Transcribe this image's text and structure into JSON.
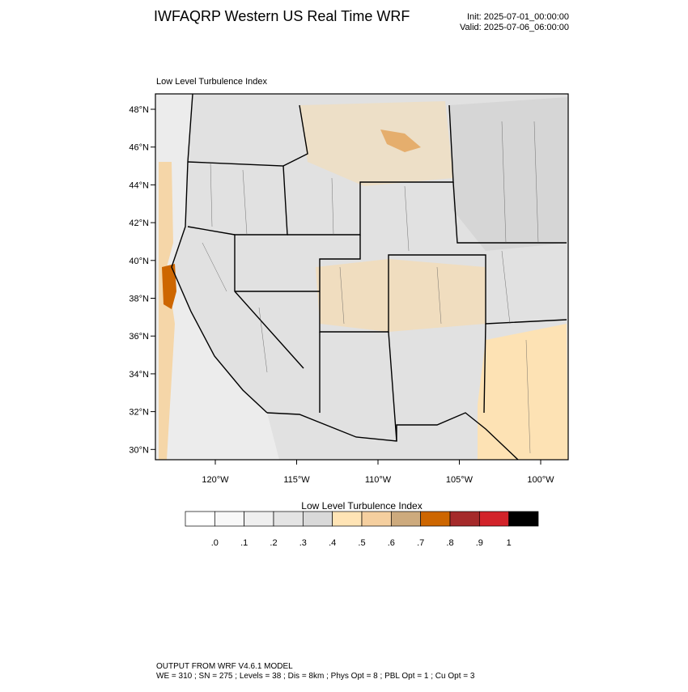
{
  "header": {
    "title": "IWFAQRP Western US Real Time WRF",
    "init": "Init: 2025-07-01_00:00:00",
    "valid": "Valid: 2025-07-06_06:00:00",
    "subtitle": "Low Level Turbulence Index"
  },
  "map": {
    "lat_labels": [
      "48°N",
      "46°N",
      "44°N",
      "42°N",
      "40°N",
      "38°N",
      "36°N",
      "34°N",
      "32°N",
      "30°N"
    ],
    "lon_labels": [
      "120°W",
      "115°W",
      "110°W",
      "105°W",
      "100°W"
    ]
  },
  "colorbar": {
    "title": "Low Level Turbulence Index",
    "labels": [
      ".0",
      ".1",
      ".2",
      ".3",
      ".4",
      ".5",
      ".6",
      ".7",
      ".8",
      ".9",
      "1"
    ],
    "colors": [
      "#ffffff",
      "#f8f8f8",
      "#efefef",
      "#e4e4e4",
      "#d9d9d9",
      "#ffe4b5",
      "#f5cf9f",
      "#cdaa7d",
      "#cd6600",
      "#a52a2a",
      "#d2232a",
      "#000000"
    ]
  },
  "footer": {
    "line1": "OUTPUT FROM WRF V4.6.1 MODEL",
    "line2": "WE = 310 ; SN = 275 ; Levels = 38 ; Dis = 8km ; Phys Opt = 8 ; PBL Opt = 1 ; Cu Opt = 3"
  }
}
